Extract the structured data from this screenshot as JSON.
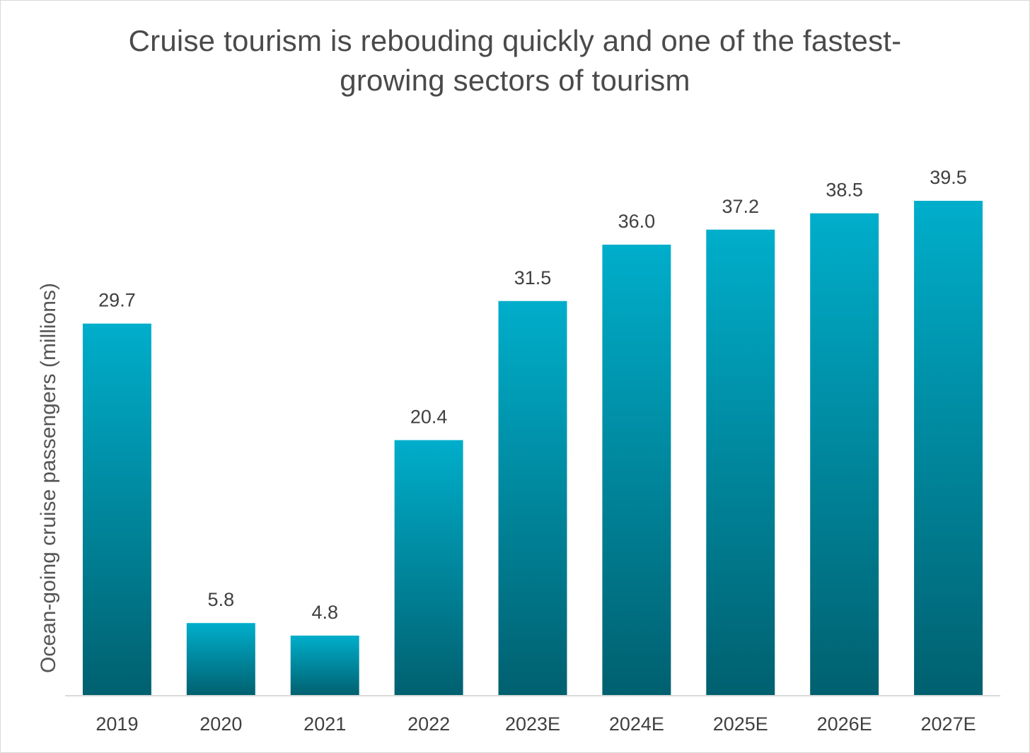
{
  "chart_data": {
    "type": "bar",
    "title_lines": [
      "Cruise tourism is rebouding quickly and one of the fastest-",
      "growing sectors of tourism"
    ],
    "xlabel": "",
    "ylabel": "Ocean-going cruise passengers (millions)",
    "categories": [
      "2019",
      "2020",
      "2021",
      "2022",
      "2023E",
      "2024E",
      "2025E",
      "2026E",
      "2027E"
    ],
    "values": [
      29.7,
      5.8,
      4.8,
      20.4,
      31.5,
      36.0,
      37.2,
      38.5,
      39.5
    ],
    "data_labels": [
      "29.7",
      "5.8",
      "4.8",
      "20.4",
      "31.5",
      "36.0",
      "37.2",
      "38.5",
      "39.5"
    ],
    "ylim": [
      0,
      39.5
    ],
    "grid": false,
    "legend": "none",
    "colors": {
      "bar_top": "#00aecb",
      "bar_bottom": "#00606f",
      "axis": "#d9d9d9",
      "text": "#404040"
    }
  }
}
